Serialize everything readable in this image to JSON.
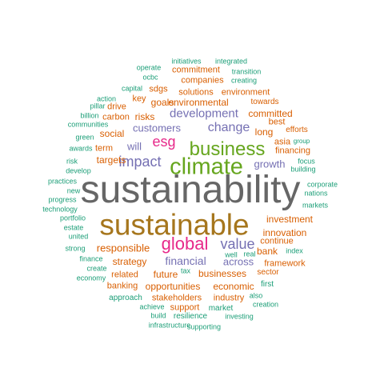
{
  "words": [
    {
      "text": "sustainability",
      "color": "#666666"
    },
    {
      "text": "sustainable",
      "color": "#a6761d"
    },
    {
      "text": "climate",
      "color": "#66a61e"
    },
    {
      "text": "business",
      "color": "#66a61e"
    },
    {
      "text": "global",
      "color": "#e7298a"
    },
    {
      "text": "esg",
      "color": "#e7298a"
    },
    {
      "text": "impact",
      "color": "#7570b3"
    },
    {
      "text": "value",
      "color": "#7570b3"
    },
    {
      "text": "change",
      "color": "#7570b3"
    },
    {
      "text": "development",
      "color": "#7570b3"
    },
    {
      "text": "financial",
      "color": "#7570b3"
    },
    {
      "text": "customers",
      "color": "#7570b3"
    },
    {
      "text": "will",
      "color": "#7570b3"
    },
    {
      "text": "growth",
      "color": "#7570b3"
    },
    {
      "text": "across",
      "color": "#7570b3"
    },
    {
      "text": "responsible",
      "color": "#d95f02"
    },
    {
      "text": "investment",
      "color": "#d95f02"
    },
    {
      "text": "innovation",
      "color": "#d95f02"
    },
    {
      "text": "businesses",
      "color": "#d95f02"
    },
    {
      "text": "strategy",
      "color": "#d95f02"
    },
    {
      "text": "future",
      "color": "#d95f02"
    },
    {
      "text": "opportunities",
      "color": "#d95f02"
    },
    {
      "text": "economic",
      "color": "#d95f02"
    },
    {
      "text": "environmental",
      "color": "#d95f02"
    },
    {
      "text": "targets",
      "color": "#d95f02"
    },
    {
      "text": "social",
      "color": "#d95f02"
    },
    {
      "text": "goals",
      "color": "#d95f02"
    },
    {
      "text": "risks",
      "color": "#d95f02"
    },
    {
      "text": "bank",
      "color": "#d95f02"
    },
    {
      "text": "long",
      "color": "#d95f02"
    },
    {
      "text": "committed",
      "color": "#d95f02"
    },
    {
      "text": "stakeholders",
      "color": "#d95f02"
    },
    {
      "text": "industry",
      "color": "#d95f02"
    },
    {
      "text": "financing",
      "color": "#d95f02"
    },
    {
      "text": "framework",
      "color": "#d95f02"
    },
    {
      "text": "solutions",
      "color": "#d95f02"
    },
    {
      "text": "environment",
      "color": "#d95f02"
    },
    {
      "text": "companies",
      "color": "#d95f02"
    },
    {
      "text": "commitment",
      "color": "#d95f02"
    },
    {
      "text": "support",
      "color": "#d95f02"
    },
    {
      "text": "related",
      "color": "#d95f02"
    },
    {
      "text": "banking",
      "color": "#d95f02"
    },
    {
      "text": "continue",
      "color": "#d95f02"
    },
    {
      "text": "best",
      "color": "#d95f02"
    },
    {
      "text": "asia",
      "color": "#d95f02"
    },
    {
      "text": "sdgs",
      "color": "#d95f02"
    },
    {
      "text": "key",
      "color": "#d95f02"
    },
    {
      "text": "carbon",
      "color": "#d95f02"
    },
    {
      "text": "drive",
      "color": "#d95f02"
    },
    {
      "text": "term",
      "color": "#d95f02"
    },
    {
      "text": "towards",
      "color": "#d95f02"
    },
    {
      "text": "sector",
      "color": "#d95f02"
    },
    {
      "text": "efforts",
      "color": "#d95f02"
    },
    {
      "text": "resilience",
      "color": "#1b9e77"
    },
    {
      "text": "market",
      "color": "#1b9e77"
    },
    {
      "text": "first",
      "color": "#1b9e77"
    },
    {
      "text": "approach",
      "color": "#1b9e77"
    },
    {
      "text": "tax",
      "color": "#1b9e77"
    },
    {
      "text": "focus",
      "color": "#1b9e77"
    },
    {
      "text": "building",
      "color": "#1b9e77"
    },
    {
      "text": "capital",
      "color": "#1b9e77"
    },
    {
      "text": "ocbc",
      "color": "#1b9e77"
    },
    {
      "text": "action",
      "color": "#1b9e77"
    },
    {
      "text": "pillar",
      "color": "#1b9e77"
    },
    {
      "text": "billion",
      "color": "#1b9e77"
    },
    {
      "text": "communities",
      "color": "#1b9e77"
    },
    {
      "text": "green",
      "color": "#1b9e77"
    },
    {
      "text": "awards",
      "color": "#1b9e77"
    },
    {
      "text": "risk",
      "color": "#1b9e77"
    },
    {
      "text": "develop",
      "color": "#1b9e77"
    },
    {
      "text": "practices",
      "color": "#1b9e77"
    },
    {
      "text": "new",
      "color": "#1b9e77"
    },
    {
      "text": "progress",
      "color": "#1b9e77"
    },
    {
      "text": "technology",
      "color": "#1b9e77"
    },
    {
      "text": "portfolio",
      "color": "#1b9e77"
    },
    {
      "text": "estate",
      "color": "#1b9e77"
    },
    {
      "text": "united",
      "color": "#1b9e77"
    },
    {
      "text": "strong",
      "color": "#1b9e77"
    },
    {
      "text": "finance",
      "color": "#1b9e77"
    },
    {
      "text": "create",
      "color": "#1b9e77"
    },
    {
      "text": "economy",
      "color": "#1b9e77"
    },
    {
      "text": "achieve",
      "color": "#1b9e77"
    },
    {
      "text": "build",
      "color": "#1b9e77"
    },
    {
      "text": "infrastructure",
      "color": "#1b9e77"
    },
    {
      "text": "supporting",
      "color": "#1b9e77"
    },
    {
      "text": "investing",
      "color": "#1b9e77"
    },
    {
      "text": "creation",
      "color": "#1b9e77"
    },
    {
      "text": "also",
      "color": "#1b9e77"
    },
    {
      "text": "well",
      "color": "#1b9e77"
    },
    {
      "text": "real",
      "color": "#1b9e77"
    },
    {
      "text": "index",
      "color": "#1b9e77"
    },
    {
      "text": "corporate",
      "color": "#1b9e77"
    },
    {
      "text": "nations",
      "color": "#1b9e77"
    },
    {
      "text": "markets",
      "color": "#1b9e77"
    },
    {
      "text": "group",
      "color": "#1b9e77"
    },
    {
      "text": "operate",
      "color": "#1b9e77"
    },
    {
      "text": "initiatives",
      "color": "#1b9e77"
    },
    {
      "text": "integrated",
      "color": "#1b9e77"
    },
    {
      "text": "transition",
      "color": "#1b9e77"
    },
    {
      "text": "creating",
      "color": "#1b9e77"
    }
  ]
}
